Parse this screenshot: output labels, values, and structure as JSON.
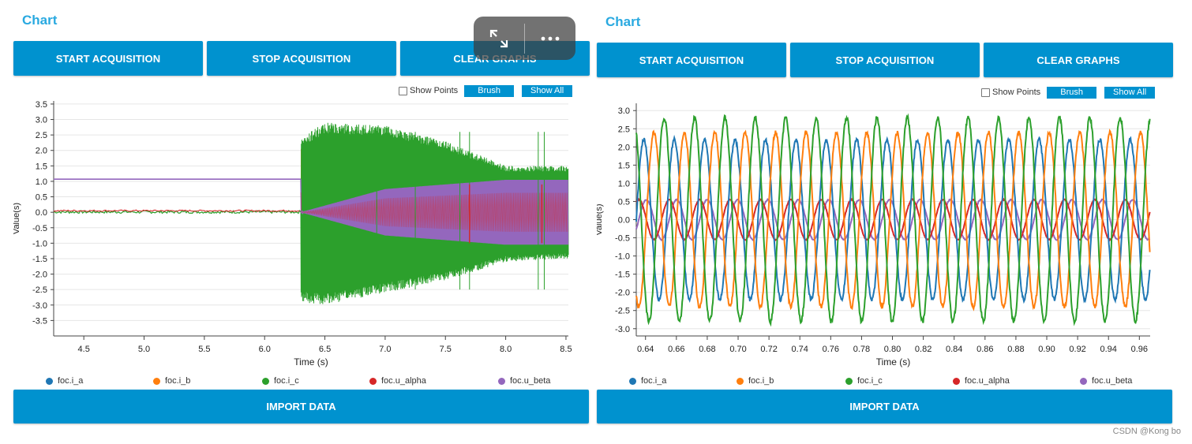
{
  "colors": {
    "accent": "#0092cf",
    "title": "#29a9e0",
    "series": [
      "#1f77b4",
      "#ff7f0e",
      "#2ca02c",
      "#d62728",
      "#9467bd"
    ]
  },
  "panels": [
    {
      "title": "Chart",
      "buttons": {
        "start": "START ACQUISITION",
        "stop": "STOP ACQUISITION",
        "clear": "CLEAR GRAPHS"
      },
      "tools": {
        "show_points": "Show Points",
        "brush": "Brush",
        "show_all": "Show All"
      },
      "import_label": "IMPORT DATA"
    },
    {
      "title": "Chart",
      "buttons": {
        "start": "START ACQUISITION",
        "stop": "STOP ACQUISITION",
        "clear": "CLEAR GRAPHS"
      },
      "tools": {
        "show_points": "Show Points",
        "brush": "Brush",
        "show_all": "Show All"
      },
      "import_label": "IMPORT DATA"
    }
  ],
  "overlay": {
    "expand_icon": "expand-icon",
    "more_icon": "more-icon"
  },
  "watermark": "CSDN @Kong bo",
  "chart_data": [
    {
      "type": "line",
      "title": "Chart",
      "xlabel": "Time (s)",
      "ylabel": "Value(s)",
      "xlim": [
        4.25,
        8.52
      ],
      "ylim": [
        -4.0,
        3.6
      ],
      "xticks": [
        "4.5",
        "5.0",
        "5.5",
        "6.0",
        "6.5",
        "7.0",
        "7.5",
        "8.0",
        "8.5"
      ],
      "yticks": [
        "3.5",
        "3.0",
        "2.5",
        "2.0",
        "1.5",
        "1.0",
        "0.5",
        "0.0",
        "-0.5",
        "-1.0",
        "-1.5",
        "-2.0",
        "-2.5",
        "-3.0",
        "-3.5"
      ],
      "legend": [
        "foc.i_a",
        "foc.i_b",
        "foc.i_c",
        "foc.u_alpha",
        "foc.u_beta"
      ],
      "series": [
        {
          "name": "foc.i_c",
          "x": [
            4.25,
            6.3,
            6.3,
            6.5,
            7.0,
            7.5,
            8.0,
            8.5
          ],
          "envelope_upper": [
            0.06,
            0.06,
            2.4,
            2.9,
            2.8,
            2.3,
            1.5,
            1.5
          ],
          "envelope_lower": [
            -0.05,
            -0.05,
            -2.9,
            -3.0,
            -2.6,
            -2.2,
            -1.6,
            -1.5
          ]
        },
        {
          "name": "foc.u_beta",
          "x": [
            4.25,
            6.3,
            6.3,
            7.0,
            8.0,
            8.5
          ],
          "envelope_upper": [
            1.07,
            1.07,
            0.0,
            0.75,
            1.05,
            1.05
          ],
          "envelope_lower": [
            1.07,
            1.07,
            0.0,
            -0.75,
            -1.05,
            -1.05
          ]
        },
        {
          "name": "foc.u_alpha",
          "x": [
            4.25,
            6.3
          ],
          "values": [
            0.06,
            0.06
          ]
        }
      ]
    },
    {
      "type": "line",
      "title": "Chart",
      "xlabel": "Time (s)",
      "ylabel": "Value(s)",
      "xlim": [
        0.634,
        0.967
      ],
      "ylim": [
        -3.2,
        3.2
      ],
      "xticks": [
        "0.64",
        "0.66",
        "0.68",
        "0.70",
        "0.72",
        "0.74",
        "0.76",
        "0.78",
        "0.80",
        "0.82",
        "0.84",
        "0.86",
        "0.88",
        "0.90",
        "0.92",
        "0.94",
        "0.96"
      ],
      "yticks": [
        "3.0",
        "2.5",
        "2.0",
        "1.5",
        "1.0",
        "0.5",
        "0.0",
        "-0.5",
        "-1.0",
        "-1.5",
        "-2.0",
        "-2.5",
        "-3.0"
      ],
      "legend": [
        "foc.i_a",
        "foc.i_b",
        "foc.i_c",
        "foc.u_alpha",
        "foc.u_beta"
      ],
      "period_s": 0.0197,
      "series": [
        {
          "name": "foc.i_a",
          "amplitude": 2.2,
          "phase_deg": 0
        },
        {
          "name": "foc.i_b",
          "amplitude": 2.4,
          "phase_deg": -120
        },
        {
          "name": "foc.i_c",
          "amplitude": 2.8,
          "phase_deg": 120
        },
        {
          "name": "foc.u_alpha",
          "amplitude": 0.55,
          "phase_deg": 60
        },
        {
          "name": "foc.u_beta",
          "amplitude": 0.55,
          "phase_deg": -30
        }
      ]
    }
  ]
}
